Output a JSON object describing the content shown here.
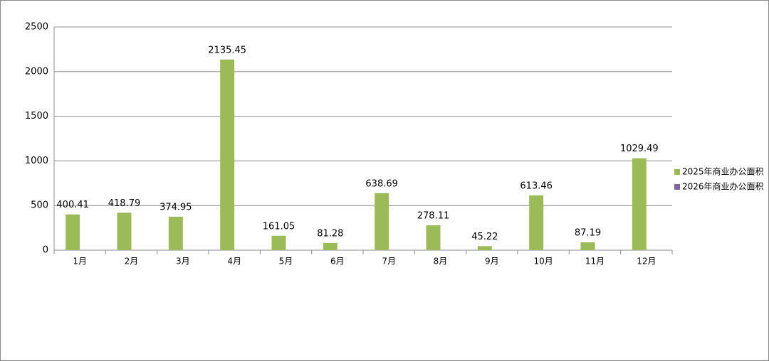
{
  "chart_data": {
    "type": "bar",
    "categories": [
      "1月",
      "2月",
      "3月",
      "4月",
      "5月",
      "6月",
      "7月",
      "8月",
      "9月",
      "10月",
      "11月",
      "12月"
    ],
    "series": [
      {
        "name": "2025年商业办公面积",
        "color": "#9bbb59",
        "values": [
          400.41,
          418.79,
          374.95,
          2135.45,
          161.05,
          81.28,
          638.69,
          278.11,
          45.22,
          613.46,
          87.19,
          1029.49
        ]
      },
      {
        "name": "2026年商业办公面积",
        "color": "#8064a2",
        "values": [
          null,
          null,
          null,
          null,
          null,
          null,
          null,
          null,
          null,
          null,
          null,
          null
        ]
      }
    ],
    "ylim": [
      0,
      2500
    ],
    "yticks": [
      0,
      500,
      1000,
      1500,
      2000,
      2500
    ],
    "grid": true,
    "legend": "right"
  }
}
